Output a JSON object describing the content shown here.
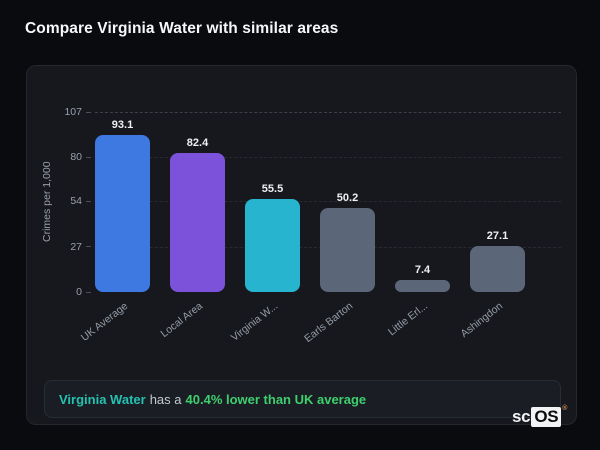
{
  "page": {
    "title": "Compare Virginia Water with similar areas"
  },
  "chart_data": {
    "type": "bar",
    "categories": [
      "UK Average",
      "Local Area",
      "Virginia W...",
      "Earls Barton",
      "Little Erl...",
      "Ashingdon"
    ],
    "values": [
      93.1,
      82.4,
      55.5,
      50.2,
      7.4,
      27.1
    ],
    "value_labels": [
      "93.1",
      "82.4",
      "55.5",
      "50.2",
      "7.4",
      "27.1"
    ],
    "bar_colors": [
      "#3d79e0",
      "#7d52da",
      "#27b4ce",
      "#5b6779",
      "#5b6779",
      "#5b6779"
    ],
    "title": "",
    "xlabel": "",
    "ylabel": "Crimes per 1,000",
    "yticks": [
      0,
      27,
      54,
      80,
      107
    ],
    "ylim": [
      0,
      107
    ],
    "grid": "dashed horizontal gridlines at y ticks",
    "legend": "none"
  },
  "note": {
    "area_text": "Virginia Water",
    "middle_text": "has a",
    "stat_text": "40.4% lower than UK average",
    "area_color": "#25c2b2",
    "stat_color": "#3ecf6e"
  },
  "logo": {
    "prefix": "sc",
    "suffix": "OS",
    "registered_mark": "®"
  },
  "colors": {
    "page_background": "#0a0b0e",
    "card_background": "#16181d",
    "note_background": "#1a1d23",
    "text_primary": "#f6f7f9",
    "text_muted": "#98a0ab"
  }
}
